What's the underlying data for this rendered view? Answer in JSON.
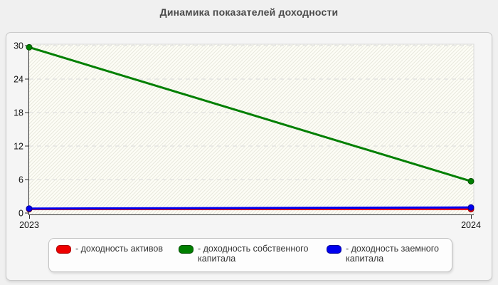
{
  "page": {
    "title": "Динамика показателей доходности"
  },
  "chart_data": {
    "type": "line",
    "title": "Динамика показателей доходности",
    "categories": [
      "2023",
      "2024"
    ],
    "series": [
      {
        "name": "доходность активов",
        "color": "#ee0000",
        "point_border": "#990000",
        "values": [
          0.7,
          0.7
        ]
      },
      {
        "name": "доходность собственного капитала",
        "color": "#007f00",
        "point_border": "#004d00",
        "values": [
          29.7,
          5.7
        ]
      },
      {
        "name": "доходность заемного капитала",
        "color": "#0000ee",
        "point_border": "#000099",
        "values": [
          0.8,
          1.0
        ]
      }
    ],
    "ylim": [
      0,
      30
    ],
    "yticks": [
      0,
      6,
      12,
      18,
      24,
      30
    ],
    "xlabel": "",
    "ylabel": "",
    "grid": "horizontal-dashed",
    "legend_position": "bottom"
  },
  "legend": {
    "items": [
      {
        "label": "- доходность активов",
        "color": "#ee0000",
        "border": "#aa0000"
      },
      {
        "label": "- доходность собственного капитала",
        "color": "#007f00",
        "border": "#004d00"
      },
      {
        "label": "- доходность заемного капитала",
        "color": "#0000ee",
        "border": "#000099"
      }
    ]
  }
}
